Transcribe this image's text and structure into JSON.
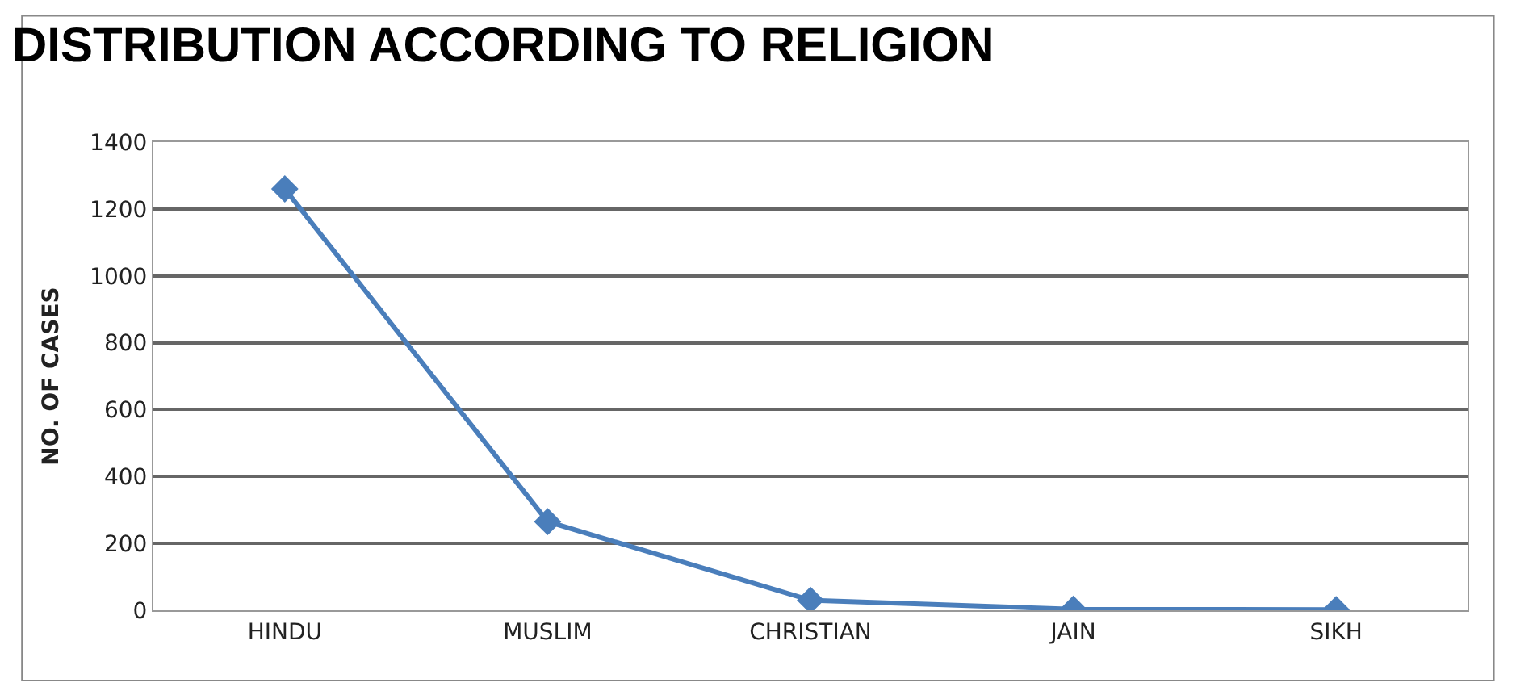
{
  "chart_data": {
    "type": "line",
    "title": "DISTRIBUTION ACCORDING TO RELIGION",
    "ylabel": "NO. OF CASES",
    "categories": [
      "HINDU",
      "MUSLIM",
      "CHRISTIAN",
      "JAIN",
      "SIKH"
    ],
    "series": [
      {
        "color": "#4a7ebb",
        "values": [
          1260,
          265,
          30,
          3,
          2
        ]
      }
    ],
    "ylim": [
      0,
      1400
    ],
    "yticks": [
      0,
      200,
      400,
      600,
      800,
      1000,
      1200,
      1400
    ],
    "grid": "y",
    "legend": false,
    "marker": "diamond",
    "line_style": "solid"
  }
}
